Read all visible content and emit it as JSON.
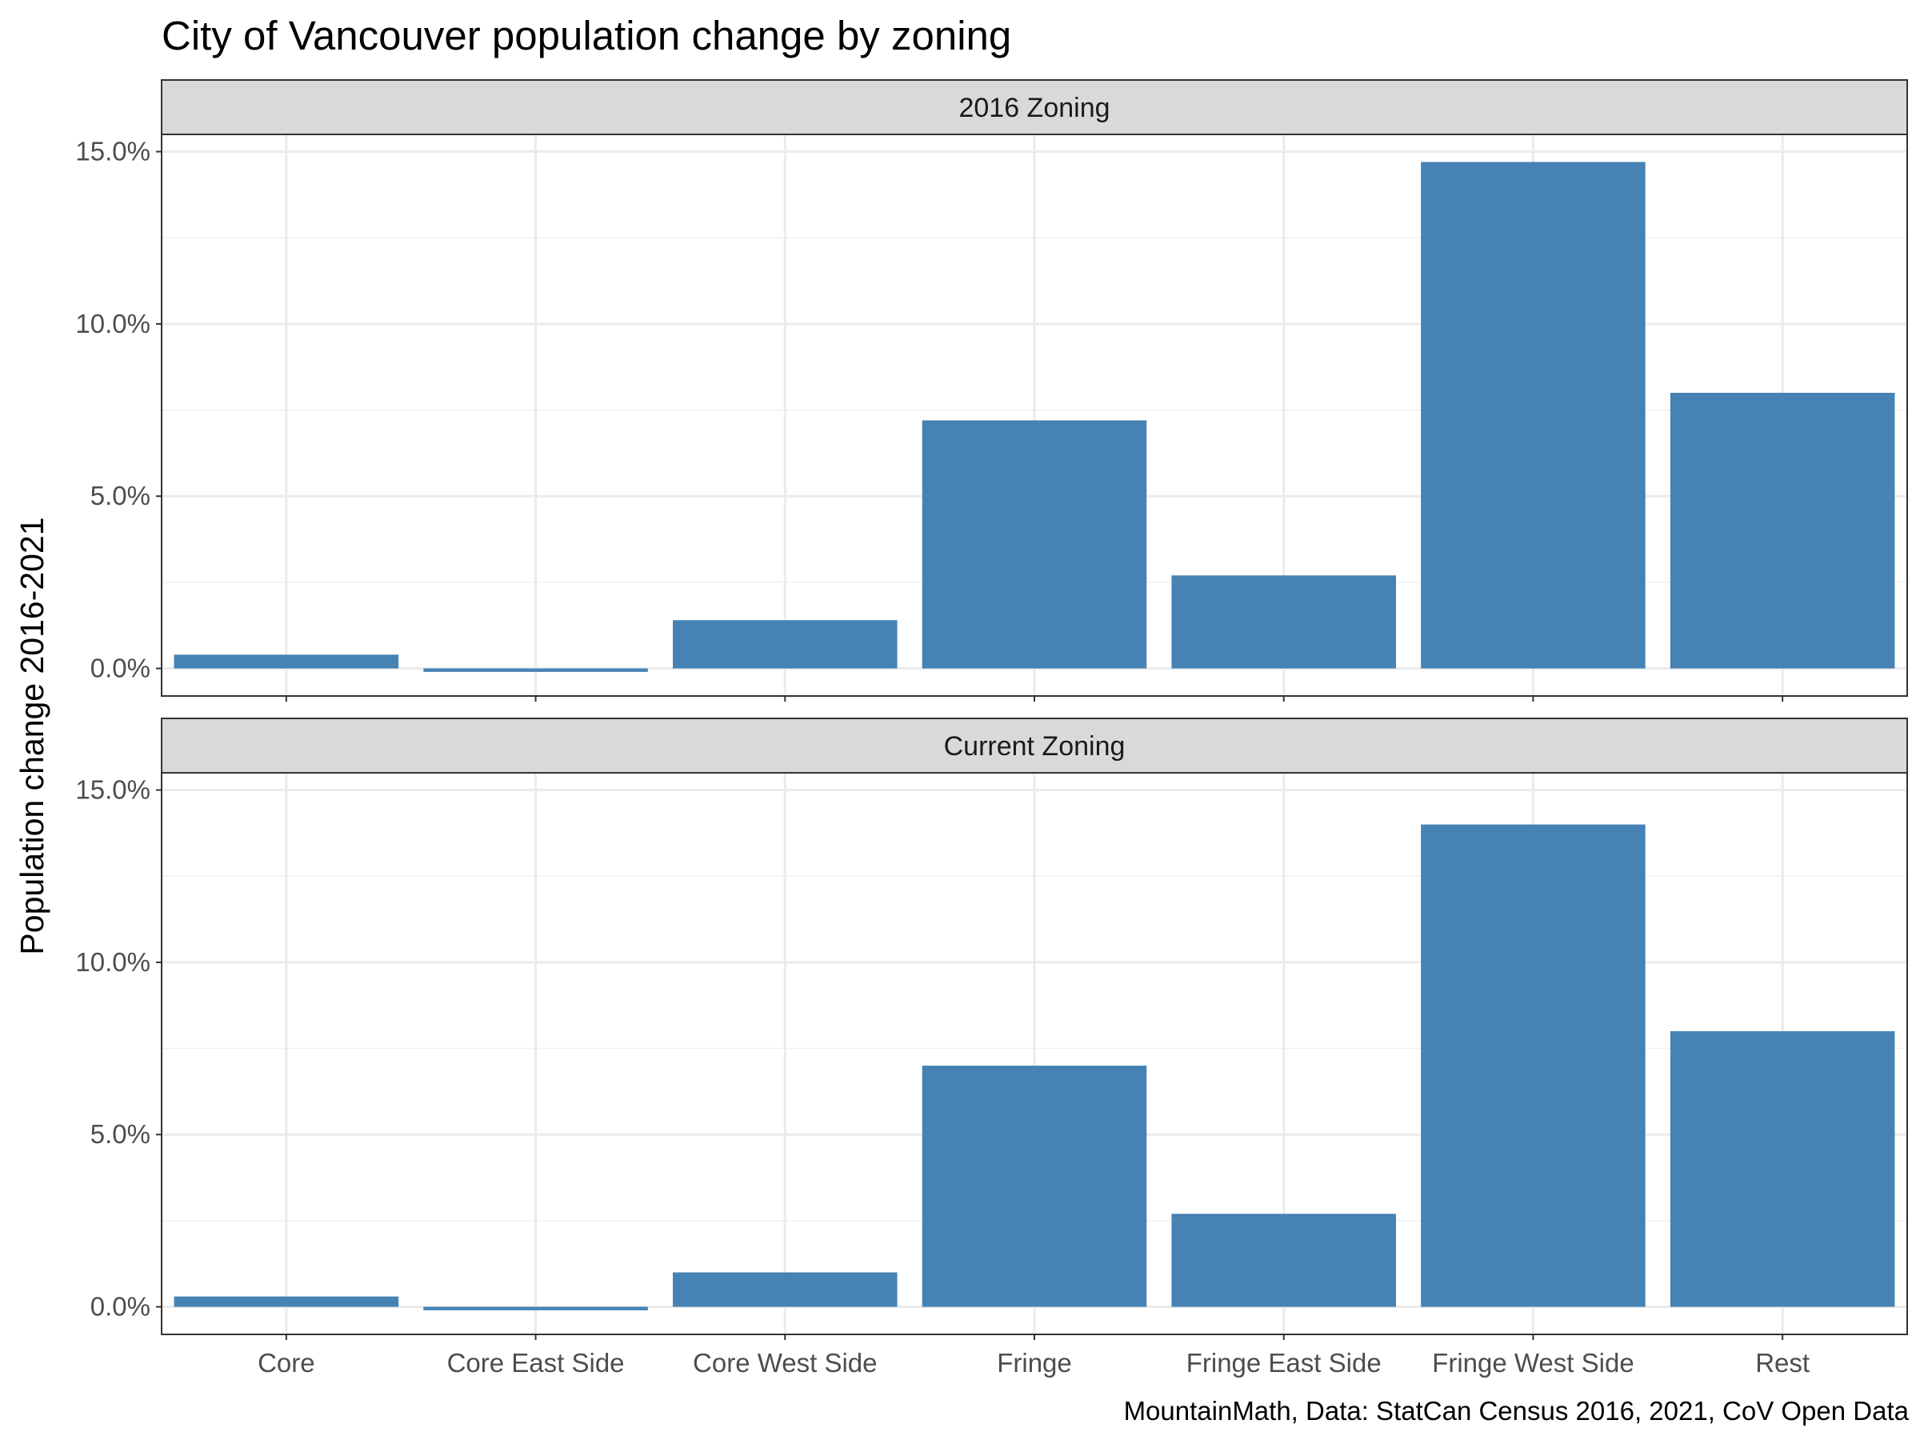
{
  "chart_data": {
    "type": "bar",
    "title": "City of Vancouver population change by zoning",
    "ylabel": "Population change 2016-2021",
    "xlabel": "",
    "caption": "MountainMath, Data: StatCan Census 2016, 2021, CoV Open Data",
    "categories": [
      "Core",
      "Core East Side",
      "Core West Side",
      "Fringe",
      "Fringe East Side",
      "Fringe West Side",
      "Rest"
    ],
    "ylim": [
      -0.8,
      15.5
    ],
    "yticks": [
      0,
      5,
      10,
      15
    ],
    "ytick_labels": [
      "0.0%",
      "5.0%",
      "10.0%",
      "15.0%"
    ],
    "y_unit": "percent",
    "grid": true,
    "bar_color": "#4682b4",
    "panels": [
      {
        "name": "2016 Zoning",
        "values": [
          0.4,
          -0.1,
          1.4,
          7.2,
          2.7,
          14.7,
          8.0
        ]
      },
      {
        "name": "Current Zoning",
        "values": [
          0.3,
          -0.1,
          1.0,
          7.0,
          2.7,
          14.0,
          8.0
        ]
      }
    ]
  }
}
